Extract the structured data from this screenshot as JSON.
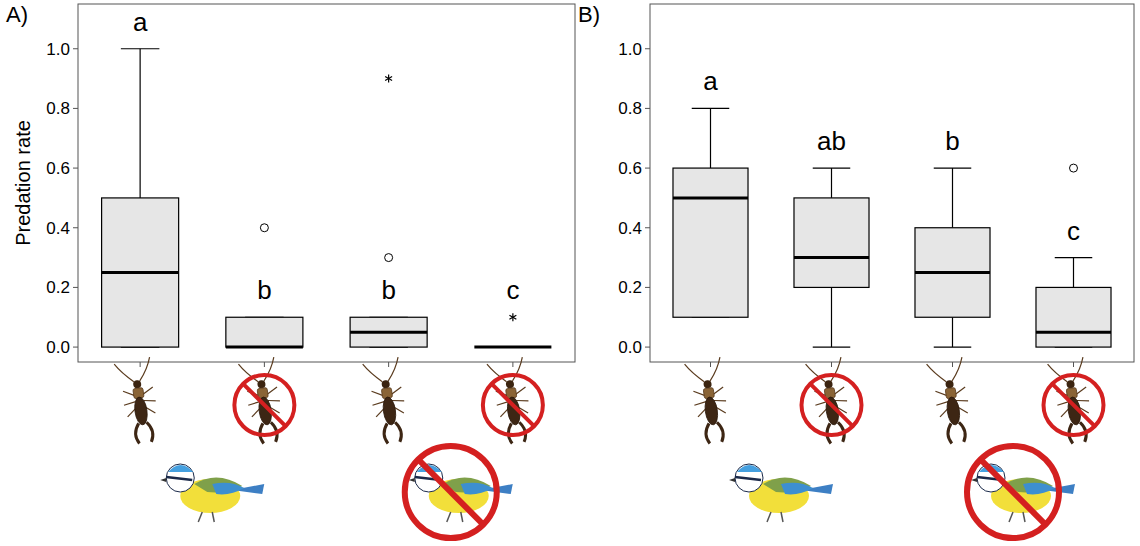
{
  "chart_data": [
    {
      "type": "box",
      "title": "A)",
      "y_label": "Predation rate",
      "color": "#e6e6e6",
      "categories": [
        null,
        null,
        null,
        null
      ],
      "ylim": [
        -0.05,
        1.15
      ],
      "yticks": [
        {
          "value": 0,
          "label": "0.0"
        },
        {
          "value": 0.2,
          "label": "0.2"
        },
        {
          "value": 0.4,
          "label": "0.4"
        },
        {
          "value": 0.6,
          "label": "0.6"
        },
        {
          "value": 0.8,
          "label": "0.8"
        },
        {
          "value": 1,
          "label": "1.0"
        }
      ],
      "grid": false,
      "tick_labels": "y",
      "boxes": [
        {
          "min": 0,
          "q1": 0,
          "median": 0.25,
          "q3": 0.5,
          "max": 1.0,
          "outliers": [],
          "extremes": [],
          "group_label": "a"
        },
        {
          "min": 0,
          "q1": 0,
          "median": 0,
          "q3": 0.1,
          "max": 0.1,
          "outliers": [
            0.4
          ],
          "extremes": [],
          "group_label": "b"
        },
        {
          "min": 0,
          "q1": 0,
          "median": 0.05,
          "q3": 0.1,
          "max": 0.1,
          "outliers": [
            0.3
          ],
          "extremes": [
            0.9
          ],
          "group_label": "b"
        },
        {
          "min": 0,
          "q1": 0,
          "median": 0,
          "q3": 0,
          "max": 0,
          "outliers": [],
          "extremes": [
            0.1
          ],
          "group_label": "c"
        }
      ]
    },
    {
      "type": "box",
      "title": "B)",
      "color": "#e6e6e6",
      "categories": [
        null,
        null,
        null,
        null
      ],
      "ylim": [
        -0.05,
        1.15
      ],
      "yticks": [
        {
          "value": 0,
          "label": "0.0"
        },
        {
          "value": 0.2,
          "label": "0.2"
        },
        {
          "value": 0.4,
          "label": "0.4"
        },
        {
          "value": 0.6,
          "label": "0.6"
        },
        {
          "value": 0.8,
          "label": "0.8"
        },
        {
          "value": 1,
          "label": "1.0"
        }
      ],
      "grid": false,
      "tick_labels": "y",
      "boxes": [
        {
          "min": 0.1,
          "q1": 0.1,
          "median": 0.5,
          "q3": 0.6,
          "max": 0.8,
          "outliers": [],
          "extremes": [],
          "group_label": "a"
        },
        {
          "min": 0,
          "q1": 0.2,
          "median": 0.3,
          "q3": 0.5,
          "max": 0.6,
          "outliers": [],
          "extremes": [],
          "group_label": "ab"
        },
        {
          "min": 0,
          "q1": 0.1,
          "median": 0.25,
          "q3": 0.4,
          "max": 0.6,
          "outliers": [],
          "extremes": [],
          "group_label": "b"
        },
        {
          "min": 0,
          "q1": 0,
          "median": 0.05,
          "q3": 0.2,
          "max": 0.3,
          "outliers": [
            0.6
          ],
          "extremes": [],
          "group_label": "c"
        }
      ]
    }
  ]
}
